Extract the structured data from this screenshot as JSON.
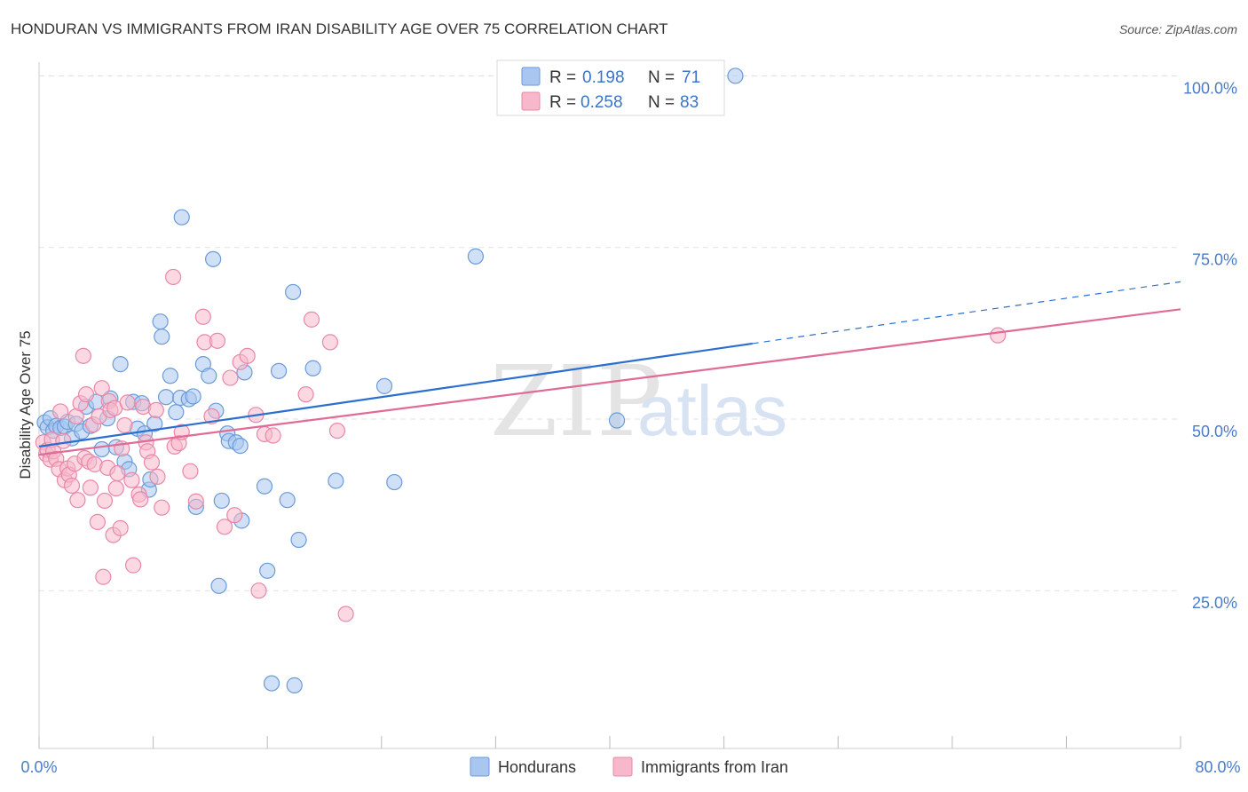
{
  "title": "HONDURAN VS IMMIGRANTS FROM IRAN DISABILITY AGE OVER 75 CORRELATION CHART",
  "source": "Source: ZipAtlas.com",
  "watermark": {
    "zip": "ZIP",
    "atlas": "atlas"
  },
  "colors": {
    "blue_fill": "#a8c6f0",
    "blue_stroke": "#6b9bd8",
    "blue_line": "#2a6fcf",
    "pink_fill": "#f7b8cb",
    "pink_stroke": "#e888a8",
    "pink_line": "#e06b97",
    "grid": "#e2e2e2"
  },
  "legend": {
    "rows": [
      {
        "r_label": "R =",
        "r_value": "0.198",
        "n_label": "N =",
        "n_value": "71",
        "series": "hondurans"
      },
      {
        "r_label": "R =",
        "r_value": "0.258",
        "n_label": "N =",
        "n_value": "83",
        "series": "iran"
      }
    ]
  },
  "bottom_legend": [
    "Hondurans",
    "Immigrants from Iran"
  ],
  "chart_data": {
    "type": "scatter",
    "title": "HONDURAN VS IMMIGRANTS FROM IRAN DISABILITY AGE OVER 75 CORRELATION CHART",
    "xlabel": "",
    "ylabel": "Disability Age Over 75",
    "xlim": [
      0,
      80
    ],
    "ylim": [
      2,
      102
    ],
    "x_tick_labels": [
      "0.0%",
      "80.0%"
    ],
    "y_ticks": [
      25,
      50,
      75,
      100
    ],
    "y_tick_labels": [
      "25.0%",
      "50.0%",
      "75.0%",
      "100.0%"
    ],
    "series": [
      {
        "name": "Hondurans",
        "R": 0.198,
        "N": 71,
        "trend": {
          "x0": 0,
          "y0": 46.0,
          "x1": 50,
          "y1": 61.0,
          "dashed_to_x": 80,
          "dashed_to_y": 70.0
        },
        "points": [
          [
            0.4,
            49.5
          ],
          [
            0.6,
            48.8
          ],
          [
            0.8,
            50.1
          ],
          [
            1.0,
            48.3
          ],
          [
            1.2,
            49.0
          ],
          [
            1.5,
            48.7
          ],
          [
            1.8,
            48.9
          ],
          [
            2.0,
            49.6
          ],
          [
            2.3,
            47.2
          ],
          [
            2.6,
            49.3
          ],
          [
            3.0,
            48.2
          ],
          [
            3.3,
            51.8
          ],
          [
            3.6,
            49.0
          ],
          [
            4.0,
            52.5
          ],
          [
            4.4,
            45.6
          ],
          [
            4.8,
            50.1
          ],
          [
            5.0,
            53.0
          ],
          [
            5.4,
            45.9
          ],
          [
            5.7,
            58.0
          ],
          [
            6.0,
            43.8
          ],
          [
            6.3,
            42.7
          ],
          [
            6.6,
            52.5
          ],
          [
            6.9,
            48.6
          ],
          [
            7.2,
            52.3
          ],
          [
            7.4,
            47.9
          ],
          [
            7.7,
            39.7
          ],
          [
            7.8,
            41.2
          ],
          [
            8.1,
            49.3
          ],
          [
            8.5,
            64.2
          ],
          [
            8.6,
            62.0
          ],
          [
            8.9,
            53.2
          ],
          [
            9.2,
            56.3
          ],
          [
            9.6,
            51.0
          ],
          [
            9.9,
            53.1
          ],
          [
            10.0,
            79.4
          ],
          [
            10.5,
            52.9
          ],
          [
            10.8,
            53.3
          ],
          [
            11.0,
            37.2
          ],
          [
            11.5,
            58.0
          ],
          [
            11.9,
            56.3
          ],
          [
            12.2,
            73.3
          ],
          [
            12.4,
            51.2
          ],
          [
            12.6,
            25.7
          ],
          [
            12.8,
            38.1
          ],
          [
            13.2,
            47.9
          ],
          [
            13.3,
            46.8
          ],
          [
            13.8,
            46.6
          ],
          [
            14.1,
            46.1
          ],
          [
            14.2,
            35.2
          ],
          [
            14.4,
            56.8
          ],
          [
            15.8,
            40.2
          ],
          [
            16.0,
            27.9
          ],
          [
            16.3,
            11.5
          ],
          [
            16.8,
            57.0
          ],
          [
            17.4,
            38.2
          ],
          [
            17.8,
            68.5
          ],
          [
            17.9,
            11.2
          ],
          [
            18.2,
            32.4
          ],
          [
            19.2,
            57.4
          ],
          [
            20.8,
            41.0
          ],
          [
            24.2,
            54.8
          ],
          [
            24.9,
            40.8
          ],
          [
            30.6,
            73.7
          ],
          [
            40.5,
            49.8
          ],
          [
            48.8,
            100.0
          ]
        ]
      },
      {
        "name": "Immigrants from Iran",
        "R": 0.258,
        "N": 83,
        "trend": {
          "x0": 0,
          "y0": 44.8,
          "x1": 80,
          "y1": 66.0
        },
        "points": [
          [
            0.3,
            46.6
          ],
          [
            0.5,
            44.9
          ],
          [
            0.6,
            45.5
          ],
          [
            0.8,
            44.1
          ],
          [
            0.9,
            47.0
          ],
          [
            1.0,
            45.3
          ],
          [
            1.2,
            44.2
          ],
          [
            1.4,
            42.7
          ],
          [
            1.5,
            51.1
          ],
          [
            1.7,
            46.8
          ],
          [
            1.8,
            41.1
          ],
          [
            2.0,
            42.8
          ],
          [
            2.1,
            41.9
          ],
          [
            2.3,
            40.3
          ],
          [
            2.5,
            43.5
          ],
          [
            2.6,
            50.4
          ],
          [
            2.7,
            38.2
          ],
          [
            2.9,
            52.3
          ],
          [
            3.1,
            59.2
          ],
          [
            3.2,
            44.3
          ],
          [
            3.3,
            53.6
          ],
          [
            3.5,
            43.8
          ],
          [
            3.6,
            40.0
          ],
          [
            3.8,
            49.2
          ],
          [
            3.9,
            43.4
          ],
          [
            4.1,
            35.0
          ],
          [
            4.2,
            50.4
          ],
          [
            4.4,
            54.5
          ],
          [
            4.5,
            27.0
          ],
          [
            4.6,
            38.1
          ],
          [
            4.8,
            42.9
          ],
          [
            4.9,
            52.6
          ],
          [
            5.0,
            51.3
          ],
          [
            5.2,
            33.1
          ],
          [
            5.3,
            51.6
          ],
          [
            5.4,
            39.9
          ],
          [
            5.5,
            42.1
          ],
          [
            5.7,
            34.1
          ],
          [
            5.8,
            45.7
          ],
          [
            6.0,
            49.1
          ],
          [
            6.2,
            52.4
          ],
          [
            6.5,
            41.1
          ],
          [
            6.6,
            28.7
          ],
          [
            7.0,
            39.0
          ],
          [
            7.1,
            38.3
          ],
          [
            7.3,
            51.8
          ],
          [
            7.5,
            46.6
          ],
          [
            7.6,
            45.3
          ],
          [
            7.9,
            43.7
          ],
          [
            8.2,
            51.3
          ],
          [
            8.3,
            41.6
          ],
          [
            8.6,
            37.1
          ],
          [
            9.4,
            70.7
          ],
          [
            9.5,
            46.0
          ],
          [
            9.8,
            46.5
          ],
          [
            10.0,
            48.1
          ],
          [
            10.6,
            42.4
          ],
          [
            11.0,
            38.0
          ],
          [
            11.5,
            64.9
          ],
          [
            11.6,
            61.2
          ],
          [
            12.1,
            50.4
          ],
          [
            12.5,
            61.4
          ],
          [
            13.0,
            34.3
          ],
          [
            13.4,
            56.0
          ],
          [
            13.7,
            36.0
          ],
          [
            14.1,
            58.3
          ],
          [
            14.6,
            59.2
          ],
          [
            15.2,
            50.6
          ],
          [
            15.4,
            25.0
          ],
          [
            15.8,
            47.8
          ],
          [
            16.4,
            47.6
          ],
          [
            18.7,
            53.6
          ],
          [
            19.1,
            64.5
          ],
          [
            20.4,
            61.2
          ],
          [
            20.9,
            48.3
          ],
          [
            21.5,
            21.6
          ],
          [
            67.2,
            62.2
          ]
        ]
      }
    ]
  }
}
